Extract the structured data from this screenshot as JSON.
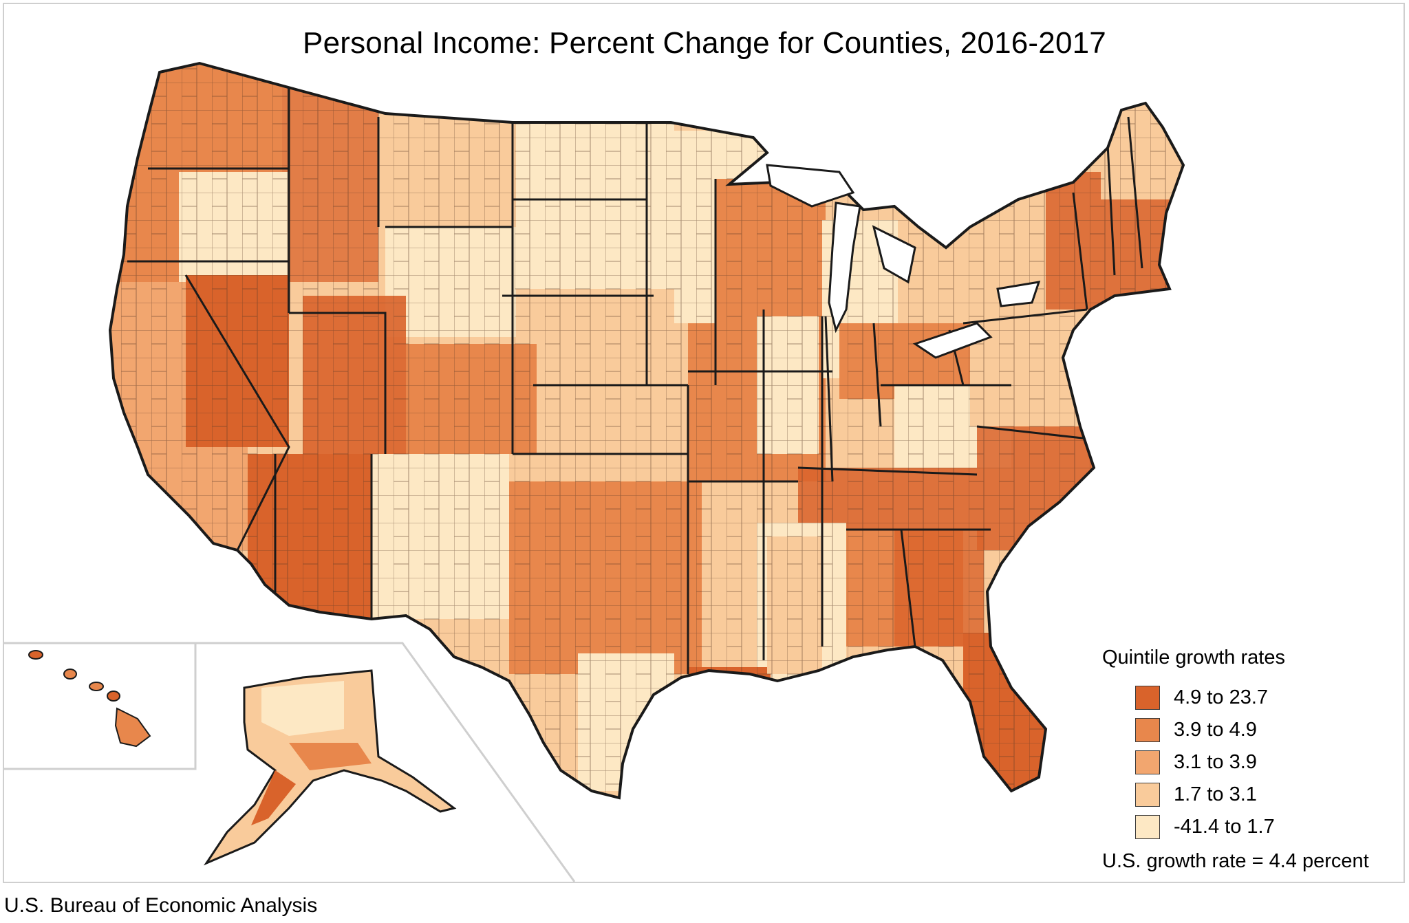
{
  "title": "Personal Income: Percent Change for Counties, 2016-2017",
  "source": "U.S. Bureau of Economic Analysis",
  "legend": {
    "title": "Quintile growth rates",
    "items": [
      {
        "label": "4.9 to 23.7",
        "color": "#d9632b"
      },
      {
        "label": "3.9 to 4.9",
        "color": "#e8874c"
      },
      {
        "label": "3.1 to 3.9",
        "color": "#f2a66f"
      },
      {
        "label": "1.7 to 3.1",
        "color": "#f9cb9b"
      },
      {
        "label": "-41.4 to 1.7",
        "color": "#fde8c4"
      }
    ],
    "us_rate": "U.S. growth rate = 4.4 percent"
  },
  "colors": {
    "border": "#1a1a1a",
    "county_line": "#5a3a28",
    "inset_frame": "#cfcfcf"
  }
}
